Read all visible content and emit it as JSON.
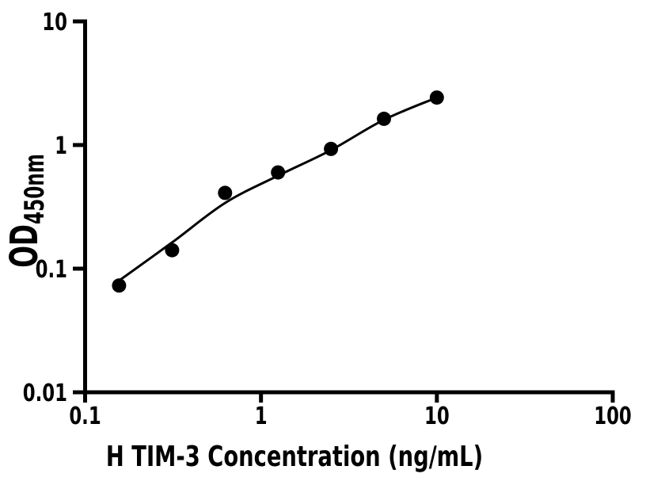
{
  "chart_data": {
    "type": "scatter",
    "title": "",
    "xlabel": "H TIM-3 Concentration (ng/mL)",
    "ylabel_main": "OD",
    "ylabel_sub": "450nm",
    "x_scale": "log",
    "y_scale": "log",
    "xlim": [
      0.1,
      100
    ],
    "ylim": [
      0.01,
      10
    ],
    "x_ticks": [
      {
        "v": 0.1,
        "label": "0.1"
      },
      {
        "v": 1,
        "label": "1"
      },
      {
        "v": 10,
        "label": "10"
      },
      {
        "v": 100,
        "label": "100"
      }
    ],
    "y_ticks": [
      {
        "v": 0.01,
        "label": "0.01"
      },
      {
        "v": 0.1,
        "label": "0.1"
      },
      {
        "v": 1,
        "label": "1"
      },
      {
        "v": 10,
        "label": "10"
      }
    ],
    "points": {
      "x": [
        0.156,
        0.3125,
        0.625,
        1.25,
        2.5,
        5,
        10
      ],
      "y": [
        0.073,
        0.141,
        0.41,
        0.6,
        0.93,
        1.63,
        2.42
      ]
    },
    "fit_curve": {
      "x": [
        0.156,
        0.3125,
        0.625,
        1.25,
        2.5,
        5,
        10
      ],
      "y": [
        0.08,
        0.163,
        0.34,
        0.565,
        0.91,
        1.6,
        2.42
      ]
    },
    "grid": "off",
    "legend": "none",
    "marker_color": "#000000",
    "curve_color": "#000000",
    "axis_color": "#000000",
    "background": "#ffffff"
  }
}
